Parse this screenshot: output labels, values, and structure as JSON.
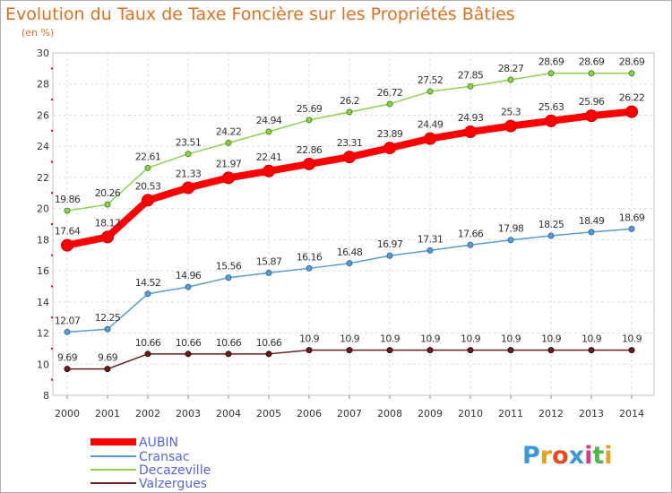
{
  "chart_data": {
    "type": "line",
    "title": "Evolution du Taux de Taxe Foncière sur les Propriétés Bâties",
    "subtitle": "(en %)",
    "xlabel": "",
    "ylabel": "",
    "ylim": [
      8,
      30
    ],
    "yticks": [
      "8",
      "10",
      "12",
      "14",
      "16",
      "18",
      "20",
      "22",
      "24",
      "26",
      "28",
      "30"
    ],
    "categories": [
      "2000",
      "2001",
      "2002",
      "2003",
      "2004",
      "2005",
      "2006",
      "2007",
      "2008",
      "2009",
      "2010",
      "2011",
      "2012",
      "2013",
      "2014"
    ],
    "grid": true,
    "legend_position": "bottom-left",
    "series": [
      {
        "name": "AUBIN",
        "color": "#ff0000",
        "values": [
          17.64,
          18.17,
          20.53,
          21.33,
          21.97,
          22.41,
          22.86,
          23.31,
          23.89,
          24.49,
          24.93,
          25.3,
          25.63,
          25.96,
          26.22
        ],
        "labels": [
          "17.64",
          "18.17",
          "20.53",
          "21.33",
          "21.97",
          "22.41",
          "22.86",
          "23.31",
          "23.89",
          "24.49",
          "24.93",
          "25.3",
          "25.63",
          "25.96",
          "26.22"
        ]
      },
      {
        "name": "Cransac",
        "color": "#5b9bd5",
        "values": [
          12.07,
          12.25,
          14.52,
          14.96,
          15.56,
          15.87,
          16.16,
          16.48,
          16.97,
          17.31,
          17.66,
          17.98,
          18.25,
          18.49,
          18.69
        ],
        "labels": [
          "12.07",
          "12.25",
          "14.52",
          "14.96",
          "15.56",
          "15.87",
          "16.16",
          "16.48",
          "16.97",
          "17.31",
          "17.66",
          "17.98",
          "18.25",
          "18.49",
          "18.69"
        ]
      },
      {
        "name": "Decazeville",
        "color": "#8fd14f",
        "values": [
          19.86,
          20.26,
          22.61,
          23.51,
          24.22,
          24.94,
          25.69,
          26.2,
          26.72,
          27.52,
          27.85,
          28.27,
          28.69,
          28.69,
          28.69
        ],
        "labels": [
          "19.86",
          "20.26",
          "22.61",
          "23.51",
          "24.22",
          "24.94",
          "25.69",
          "26.2",
          "26.72",
          "27.52",
          "27.85",
          "28.27",
          "28.69",
          "28.69",
          "28.69"
        ]
      },
      {
        "name": "Valzergues",
        "color": "#6b1e1e",
        "values": [
          9.69,
          9.69,
          10.66,
          10.66,
          10.66,
          10.66,
          10.9,
          10.9,
          10.9,
          10.9,
          10.9,
          10.9,
          10.9,
          10.9,
          10.9
        ],
        "labels": [
          "9.69",
          "9.69",
          "10.66",
          "10.66",
          "10.66",
          "10.66",
          "10.9",
          "10.9",
          "10.9",
          "10.9",
          "10.9",
          "10.9",
          "10.9",
          "10.9",
          "10.9"
        ]
      }
    ]
  },
  "logo": {
    "letters": [
      "P",
      "r",
      "o",
      "x",
      "i",
      "t",
      "i"
    ],
    "colors": [
      "#3a9ad9",
      "#e8a020",
      "#e84a20",
      "#3a9ad9",
      "#d83a8a",
      "#4ab84a",
      "#e8a020"
    ]
  }
}
